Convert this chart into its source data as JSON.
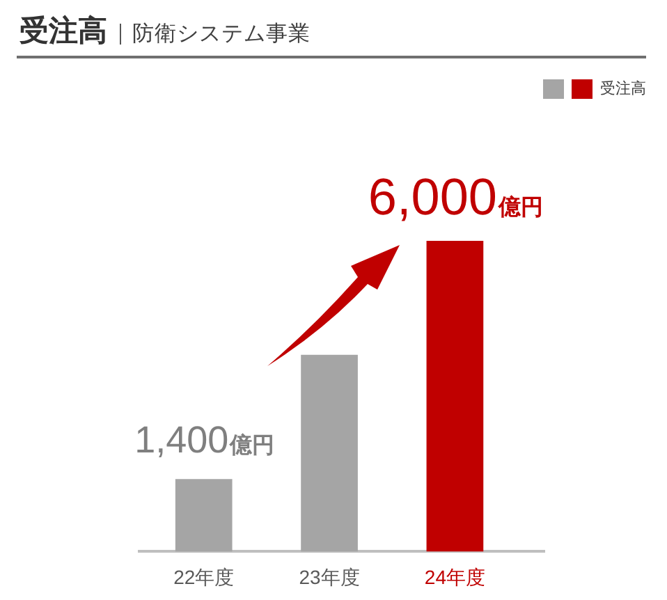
{
  "chart_data": {
    "type": "bar",
    "title": "受注高",
    "subtitle": "防衛システム事業",
    "categories": [
      "22年度",
      "23年度",
      "24年度"
    ],
    "series": [
      {
        "name": "受注高",
        "values": [
          1400,
          3800,
          6000
        ],
        "colors": [
          "#a5a5a5",
          "#a5a5a5",
          "#c00000"
        ],
        "value_labels": [
          "1,400億円",
          null,
          "6,000億円"
        ]
      }
    ],
    "legend": "top right"
  }
}
